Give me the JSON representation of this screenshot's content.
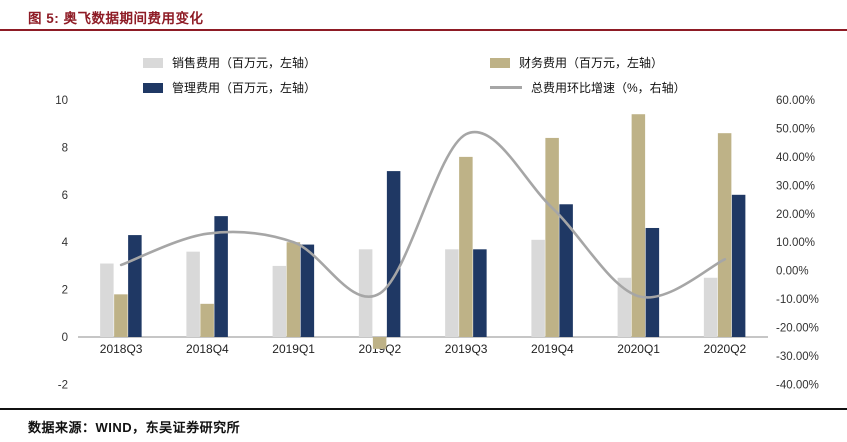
{
  "header": {
    "title": "图 5:  奥飞数据期间费用变化"
  },
  "footer": {
    "source": "数据来源：WIND，东吴证券研究所"
  },
  "accent": {
    "title_red": "#8E1B25",
    "rule_black": "#111111"
  },
  "chart_data": {
    "type": "bar",
    "subtype": "grouped bars with smoothed line overlay (dual axis)",
    "categories": [
      "2018Q3",
      "2018Q4",
      "2019Q1",
      "2019Q2",
      "2019Q3",
      "2019Q4",
      "2020Q1",
      "2020Q2"
    ],
    "series": [
      {
        "name": "销售费用（百万元，左轴）",
        "kind": "bar",
        "axis": "left",
        "color": "#D9D9D9",
        "values": [
          3.1,
          3.6,
          3.0,
          3.7,
          3.7,
          4.1,
          2.5,
          2.5
        ]
      },
      {
        "name": "财务费用（百万元，左轴）",
        "kind": "bar",
        "axis": "left",
        "color": "#BEB287",
        "values": [
          1.8,
          1.4,
          4.0,
          -0.5,
          7.6,
          8.4,
          9.4,
          8.6
        ]
      },
      {
        "name": "管理费用（百万元，左轴）",
        "kind": "bar",
        "axis": "left",
        "color": "#1F3864",
        "values": [
          4.3,
          5.1,
          3.9,
          7.0,
          3.7,
          5.6,
          4.6,
          6.0
        ]
      },
      {
        "name": "总费用环比增速（%，右轴）",
        "kind": "line",
        "axis": "right",
        "color": "#A6A6A6",
        "values": [
          2,
          13,
          10,
          -8,
          48,
          22,
          -9,
          4
        ]
      }
    ],
    "left_axis": {
      "min": -2,
      "max": 10,
      "ticks": [
        10,
        8,
        6,
        4,
        2,
        0,
        -2
      ]
    },
    "right_axis": {
      "min": -40,
      "max": 60,
      "tick_step_pct": 10,
      "ticks": [
        "60.00%",
        "50.00%",
        "40.00%",
        "30.00%",
        "20.00%",
        "10.00%",
        "0.00%",
        "-10.00%",
        "-20.00%",
        "-30.00%",
        "-40.00%"
      ]
    },
    "grid": false,
    "legend_position": "top"
  }
}
